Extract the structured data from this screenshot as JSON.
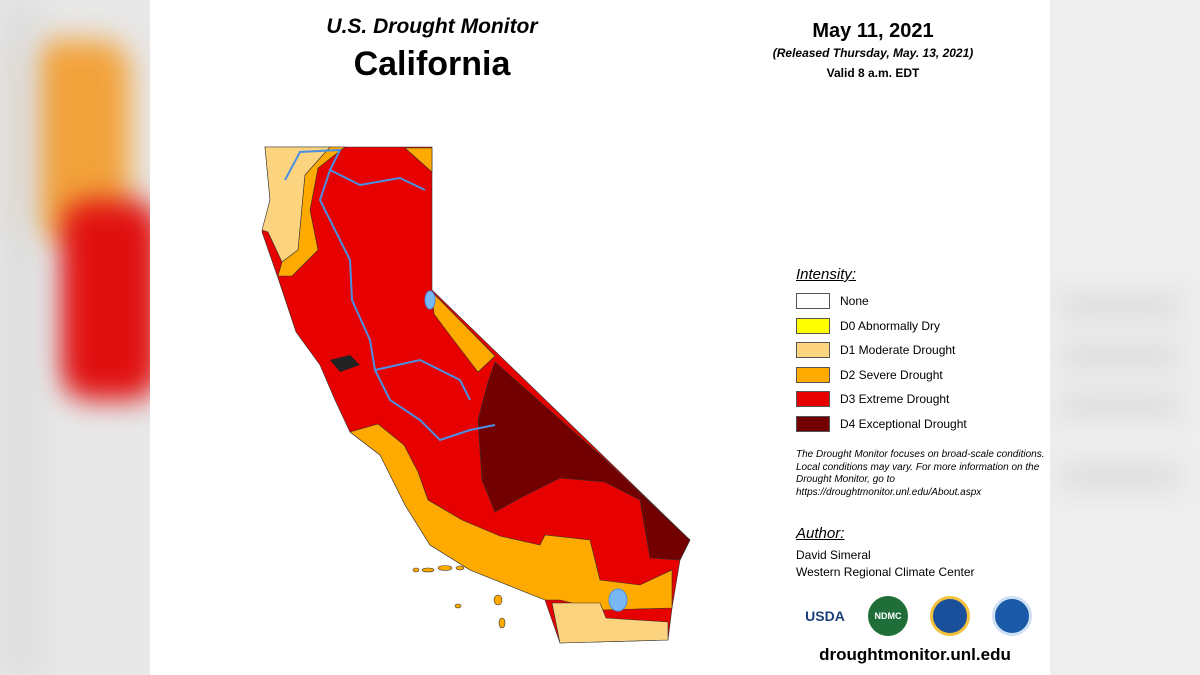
{
  "header": {
    "subtitle": "U.S. Drought Monitor",
    "title": "California",
    "date": "May 11, 2021",
    "released": "(Released Thursday, May. 13, 2021)",
    "valid": "Valid 8 a.m. EDT"
  },
  "legend": {
    "title": "Intensity:",
    "items": [
      {
        "label": "None",
        "color": "#ffffff"
      },
      {
        "label": "D0 Abnormally Dry",
        "color": "#ffff00"
      },
      {
        "label": "D1 Moderate Drought",
        "color": "#fcd37f"
      },
      {
        "label": "D2 Severe Drought",
        "color": "#ffaa00"
      },
      {
        "label": "D3 Extreme Drought",
        "color": "#e60000"
      },
      {
        "label": "D4 Exceptional Drought",
        "color": "#730000"
      }
    ]
  },
  "note": "The Drought Monitor focuses on broad-scale conditions. Local conditions may vary. For more information on the Drought Monitor, go to https://droughtmonitor.unl.edu/About.aspx",
  "author": {
    "title": "Author:",
    "name": "David Simeral",
    "org": "Western Regional Climate Center"
  },
  "logos": [
    "USDA",
    "NDMC"
  ],
  "footer": "droughtmonitor.unl.edu"
}
